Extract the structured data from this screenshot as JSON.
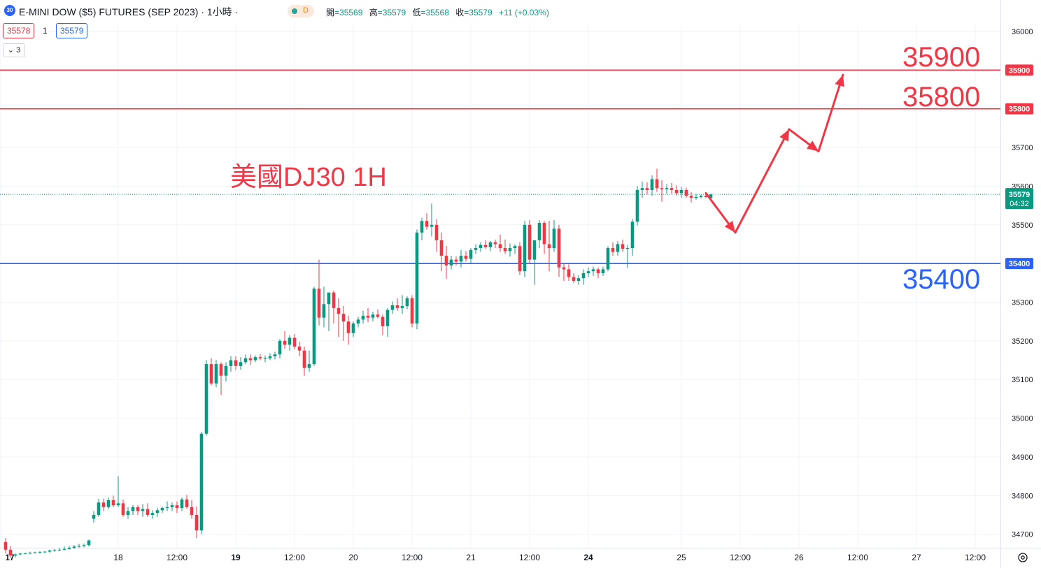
{
  "legend": {
    "badge": "30",
    "title": "E-MINI DOW ($5) FUTURES (SEP 2023) · 1小時 ·",
    "status": "D",
    "ohlc": [
      {
        "label": "開",
        "value": "=35569"
      },
      {
        "label": "高",
        "value": "=35579"
      },
      {
        "label": "低",
        "value": "=35568"
      },
      {
        "label": "收",
        "value": "=35579"
      }
    ],
    "change": "+11 (+0.03%)",
    "bid": "35578",
    "spread": "1",
    "ask": "35579",
    "collapse_label": "⌄ 3"
  },
  "annotations": {
    "title": "美國DJ30 1H",
    "level_35900": "35900",
    "level_35800": "35800",
    "level_35400": "35400"
  },
  "colors": {
    "up": "#089981",
    "down": "#f23645",
    "blue": "#2962ff",
    "red": "#f23645"
  },
  "chart_data": {
    "type": "candlestick",
    "y_ticks": [
      36000,
      35900,
      35800,
      35700,
      35600,
      35500,
      35400,
      35300,
      35200,
      35100,
      35000,
      34900,
      34800,
      34700
    ],
    "ylim": [
      34640,
      36050
    ],
    "horizontal_lines": [
      {
        "price": 35900,
        "label": "35900",
        "color": "#f23645"
      },
      {
        "price": 35800,
        "label": "35800",
        "color": "#f23645"
      },
      {
        "price": 35400,
        "label": "35400",
        "color": "#2962ff"
      }
    ],
    "last_price": {
      "price": 35579,
      "label": "35579",
      "countdown": "04:32"
    },
    "x_labels": [
      {
        "text": "17",
        "bold": true,
        "bar": -1
      },
      {
        "text": "18",
        "bold": false,
        "bar": 23
      },
      {
        "text": "12:00",
        "bold": false,
        "bar": 35
      },
      {
        "text": "19",
        "bold": true,
        "bar": 47
      },
      {
        "text": "12:00",
        "bold": false,
        "bar": 59
      },
      {
        "text": "20",
        "bold": false,
        "bar": 71
      },
      {
        "text": "12:00",
        "bold": false,
        "bar": 83
      },
      {
        "text": "21",
        "bold": false,
        "bar": 95
      },
      {
        "text": "12:00",
        "bold": false,
        "bar": 107
      },
      {
        "text": "24",
        "bold": true,
        "bar": 119
      },
      {
        "text": "25",
        "bold": false,
        "bar": 138
      },
      {
        "text": "12:00",
        "bold": false,
        "bar": 150
      },
      {
        "text": "26",
        "bold": false,
        "bar": 162
      },
      {
        "text": "12:00",
        "bold": false,
        "bar": 174
      },
      {
        "text": "27",
        "bold": false,
        "bar": 186
      },
      {
        "text": "12:00",
        "bold": false,
        "bar": 198
      }
    ],
    "candles": [
      [
        34680,
        34690,
        34650,
        34660
      ],
      [
        34660,
        34670,
        34640,
        34645
      ],
      [
        34645,
        34650,
        34640,
        34648
      ],
      [
        34648,
        34652,
        34646,
        34650
      ],
      [
        34650,
        34652,
        34648,
        34651
      ],
      [
        34651,
        34655,
        34648,
        34652
      ],
      [
        34652,
        34655,
        34650,
        34653
      ],
      [
        34653,
        34656,
        34650,
        34654
      ],
      [
        34654,
        34656,
        34652,
        34655
      ],
      [
        34655,
        34660,
        34652,
        34658
      ],
      [
        34658,
        34662,
        34655,
        34659
      ],
      [
        34659,
        34665,
        34656,
        34660
      ],
      [
        34660,
        34668,
        34658,
        34662
      ],
      [
        34662,
        34670,
        34660,
        34665
      ],
      [
        34665,
        34672,
        34662,
        34668
      ],
      [
        34668,
        34675,
        34665,
        34670
      ],
      [
        34670,
        34676,
        34666,
        34672
      ],
      [
        34672,
        34686,
        34668,
        34684
      ],
      [
        34740,
        34760,
        34730,
        34750
      ],
      [
        34750,
        34792,
        34745,
        34782
      ],
      [
        34782,
        34792,
        34760,
        34770
      ],
      [
        34770,
        34795,
        34765,
        34788
      ],
      [
        34788,
        34800,
        34770,
        34775
      ],
      [
        34775,
        34850,
        34770,
        34780
      ],
      [
        34780,
        34790,
        34745,
        34750
      ],
      [
        34750,
        34770,
        34740,
        34760
      ],
      [
        34760,
        34775,
        34750,
        34770
      ],
      [
        34770,
        34775,
        34750,
        34760
      ],
      [
        34760,
        34778,
        34745,
        34765
      ],
      [
        34765,
        34780,
        34745,
        34750
      ],
      [
        34750,
        34762,
        34740,
        34755
      ],
      [
        34755,
        34768,
        34745,
        34762
      ],
      [
        34762,
        34772,
        34755,
        34768
      ],
      [
        34768,
        34785,
        34760,
        34770
      ],
      [
        34770,
        34782,
        34760,
        34775
      ],
      [
        34775,
        34785,
        34755,
        34768
      ],
      [
        34768,
        34795,
        34760,
        34790
      ],
      [
        34790,
        34802,
        34765,
        34770
      ],
      [
        34770,
        34788,
        34740,
        34750
      ],
      [
        34750,
        34772,
        34690,
        34710
      ],
      [
        34710,
        34965,
        34700,
        34960
      ],
      [
        34960,
        35150,
        34955,
        35140
      ],
      [
        35140,
        35155,
        35085,
        35090
      ],
      [
        35090,
        35150,
        35080,
        35140
      ],
      [
        35140,
        35145,
        35060,
        35110
      ],
      [
        35110,
        35145,
        35095,
        35135
      ],
      [
        35135,
        35160,
        35120,
        35150
      ],
      [
        35150,
        35160,
        35125,
        35135
      ],
      [
        35135,
        35158,
        35125,
        35145
      ],
      [
        35145,
        35165,
        35140,
        35155
      ],
      [
        35155,
        35165,
        35138,
        35150
      ],
      [
        35150,
        35162,
        35145,
        35158
      ],
      [
        35158,
        35166,
        35150,
        35155
      ],
      [
        35155,
        35162,
        35145,
        35155
      ],
      [
        35155,
        35168,
        35150,
        35160
      ],
      [
        35160,
        35172,
        35152,
        35165
      ],
      [
        35165,
        35205,
        35155,
        35200
      ],
      [
        35200,
        35225,
        35180,
        35190
      ],
      [
        35190,
        35215,
        35175,
        35208
      ],
      [
        35208,
        35218,
        35178,
        35185
      ],
      [
        35185,
        35198,
        35160,
        35175
      ],
      [
        35175,
        35185,
        35110,
        35130
      ],
      [
        35130,
        35175,
        35120,
        35140
      ],
      [
        35140,
        35340,
        35135,
        35335
      ],
      [
        35335,
        35410,
        35240,
        35260
      ],
      [
        35260,
        35340,
        35235,
        35295
      ],
      [
        35295,
        35320,
        35225,
        35325
      ],
      [
        35325,
        35330,
        35245,
        35285
      ],
      [
        35285,
        35310,
        35210,
        35270
      ],
      [
        35270,
        35290,
        35200,
        35250
      ],
      [
        35250,
        35265,
        35190,
        35220
      ],
      [
        35220,
        35250,
        35210,
        35245
      ],
      [
        35245,
        35262,
        35235,
        35255
      ],
      [
        35255,
        35278,
        35245,
        35265
      ],
      [
        35265,
        35285,
        35248,
        35260
      ],
      [
        35260,
        35275,
        35250,
        35268
      ],
      [
        35268,
        35282,
        35258,
        35262
      ],
      [
        35262,
        35268,
        35215,
        35238
      ],
      [
        35238,
        35285,
        35210,
        35280
      ],
      [
        35280,
        35302,
        35270,
        35292
      ],
      [
        35292,
        35310,
        35278,
        35285
      ],
      [
        35285,
        35318,
        35270,
        35290
      ],
      [
        35290,
        35315,
        35282,
        35310
      ],
      [
        35310,
        35318,
        35235,
        35245
      ],
      [
        35245,
        35488,
        35230,
        35480
      ],
      [
        35480,
        35518,
        35460,
        35510
      ],
      [
        35510,
        35530,
        35488,
        35495
      ],
      [
        35495,
        35555,
        35470,
        35500
      ],
      [
        35500,
        35515,
        35430,
        35460
      ],
      [
        35460,
        35480,
        35380,
        35420
      ],
      [
        35420,
        35445,
        35360,
        35395
      ],
      [
        35395,
        35420,
        35385,
        35410
      ],
      [
        35410,
        35418,
        35395,
        35405
      ],
      [
        35405,
        35435,
        35390,
        35420
      ],
      [
        35420,
        35432,
        35405,
        35412
      ],
      [
        35412,
        35440,
        35400,
        35435
      ],
      [
        35435,
        35450,
        35425,
        35440
      ],
      [
        35440,
        35455,
        35430,
        35448
      ],
      [
        35448,
        35460,
        35438,
        35442
      ],
      [
        35442,
        35458,
        35432,
        35455
      ],
      [
        35455,
        35462,
        35440,
        35450
      ],
      [
        35450,
        35475,
        35430,
        35440
      ],
      [
        35440,
        35462,
        35425,
        35432
      ],
      [
        35432,
        35452,
        35418,
        35440
      ],
      [
        35440,
        35450,
        35425,
        35445
      ],
      [
        35445,
        35455,
        35370,
        35380
      ],
      [
        35380,
        35510,
        35365,
        35500
      ],
      [
        35500,
        35512,
        35400,
        35410
      ],
      [
        35410,
        35455,
        35345,
        35460
      ],
      [
        35460,
        35512,
        35440,
        35505
      ],
      [
        35505,
        35510,
        35425,
        35450
      ],
      [
        35450,
        35510,
        35380,
        35440
      ],
      [
        35440,
        35512,
        35430,
        35490
      ],
      [
        35490,
        35500,
        35365,
        35390
      ],
      [
        35390,
        35400,
        35355,
        35385
      ],
      [
        35385,
        35398,
        35355,
        35365
      ],
      [
        35365,
        35375,
        35350,
        35355
      ],
      [
        35355,
        35370,
        35345,
        35362
      ],
      [
        35362,
        35385,
        35345,
        35375
      ],
      [
        35375,
        35390,
        35365,
        35380
      ],
      [
        35380,
        35392,
        35368,
        35385
      ],
      [
        35385,
        35390,
        35362,
        35375
      ],
      [
        35375,
        35392,
        35368,
        35385
      ],
      [
        35385,
        35445,
        35380,
        35440
      ],
      [
        35440,
        35455,
        35420,
        35430
      ],
      [
        35430,
        35458,
        35420,
        35450
      ],
      [
        35450,
        35462,
        35430,
        35438
      ],
      [
        35438,
        35448,
        35388,
        35440
      ],
      [
        35440,
        35515,
        35420,
        35508
      ],
      [
        35508,
        35600,
        35498,
        35590
      ],
      [
        35590,
        35612,
        35570,
        35595
      ],
      [
        35595,
        35610,
        35578,
        35590
      ],
      [
        35590,
        35628,
        35575,
        35618
      ],
      [
        35618,
        35645,
        35585,
        35595
      ],
      [
        35595,
        35615,
        35560,
        35592
      ],
      [
        35592,
        35605,
        35580,
        35595
      ],
      [
        35595,
        35608,
        35580,
        35590
      ],
      [
        35590,
        35602,
        35575,
        35582
      ],
      [
        35582,
        35598,
        35570,
        35590
      ],
      [
        35590,
        35596,
        35570,
        35575
      ],
      [
        35575,
        35585,
        35558,
        35570
      ],
      [
        35570,
        35580,
        35565,
        35572
      ],
      [
        35572,
        35578,
        35568,
        35575
      ],
      [
        35575,
        35580,
        35568,
        35572
      ],
      [
        35569,
        35579,
        35568,
        35579
      ]
    ],
    "forecast_arrows": [
      {
        "path": [
          [
            143,
            35582
          ],
          [
            149,
            35480
          ]
        ]
      },
      {
        "path": [
          [
            149,
            35480
          ],
          [
            160,
            35747
          ]
        ]
      },
      {
        "path": [
          [
            160,
            35747
          ],
          [
            166,
            35690
          ]
        ]
      },
      {
        "path": [
          [
            166,
            35690
          ],
          [
            171,
            35888
          ]
        ]
      }
    ]
  }
}
